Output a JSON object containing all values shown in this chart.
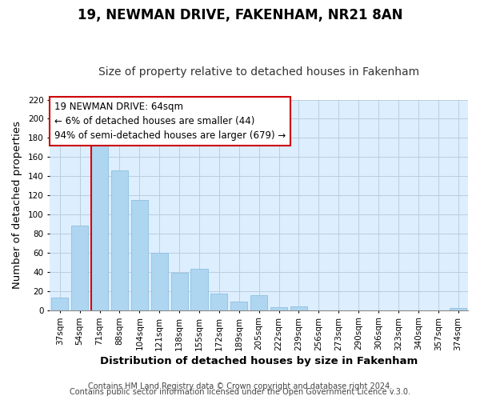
{
  "title": "19, NEWMAN DRIVE, FAKENHAM, NR21 8AN",
  "subtitle": "Size of property relative to detached houses in Fakenham",
  "xlabel": "Distribution of detached houses by size in Fakenham",
  "ylabel": "Number of detached properties",
  "footer1": "Contains HM Land Registry data © Crown copyright and database right 2024.",
  "footer2": "Contains public sector information licensed under the Open Government Licence v.3.0.",
  "annotation_title": "19 NEWMAN DRIVE: 64sqm",
  "annotation_line2": "← 6% of detached houses are smaller (44)",
  "annotation_line3": "94% of semi-detached houses are larger (679) →",
  "bar_labels": [
    "37sqm",
    "54sqm",
    "71sqm",
    "88sqm",
    "104sqm",
    "121sqm",
    "138sqm",
    "155sqm",
    "172sqm",
    "189sqm",
    "205sqm",
    "222sqm",
    "239sqm",
    "256sqm",
    "273sqm",
    "290sqm",
    "306sqm",
    "323sqm",
    "340sqm",
    "357sqm",
    "374sqm"
  ],
  "bar_values": [
    13,
    88,
    179,
    146,
    115,
    60,
    39,
    43,
    17,
    9,
    16,
    3,
    4,
    0,
    0,
    0,
    0,
    0,
    0,
    0,
    2
  ],
  "bar_color": "#aed6f1",
  "bar_edge_color": "#8ec0e0",
  "red_line_color": "#dd0000",
  "ylim": [
    0,
    220
  ],
  "yticks": [
    0,
    20,
    40,
    60,
    80,
    100,
    120,
    140,
    160,
    180,
    200,
    220
  ],
  "background_color": "#ffffff",
  "plot_bg_color": "#ddeeff",
  "grid_color": "#bbccdd",
  "box_face_color": "#ffffff",
  "box_edge_color": "#cc0000",
  "title_fontsize": 12,
  "subtitle_fontsize": 10,
  "axis_label_fontsize": 9.5,
  "tick_fontsize": 7.5,
  "annotation_fontsize": 8.5,
  "footer_fontsize": 7
}
